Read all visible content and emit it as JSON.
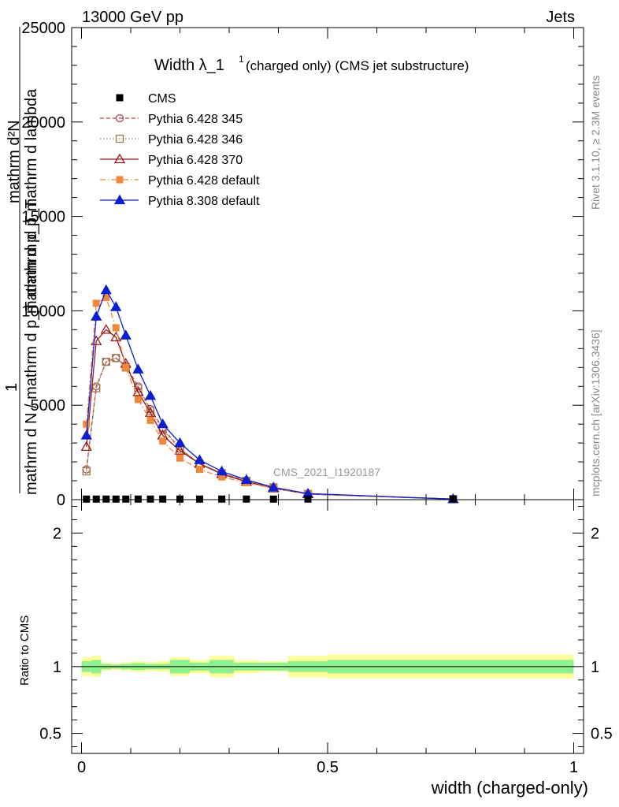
{
  "header": {
    "left": "13000 GeV pp",
    "right": "Jets"
  },
  "side_labels": {
    "rivet": "Rivet 3.1.10, ≥ 2.3M events",
    "mcplots": "mcplots.cern.ch [arXiv:1306.3436]"
  },
  "chart_data": [
    {
      "type": "line",
      "title_main": "Width λ_1",
      "title_sup": "1",
      "title_rest": "(charged only) (CMS jet substructure)",
      "ylabel_line1": "mathrm d²N",
      "ylabel_line2": "mathrm d p_T mathrm d lambda",
      "ylabel_line3": "1",
      "ylabel_line4": "mathrm d N / mathrm d p_T mathrm d p_T",
      "watermark": "CMS_2021_I1920187",
      "xlim": [
        -0.02,
        1.02
      ],
      "ylim": [
        0,
        25000
      ],
      "yticks": [
        0,
        5000,
        10000,
        15000,
        20000,
        25000
      ],
      "ytick_labels": [
        "0",
        "5000",
        "10000",
        "15000",
        "20000",
        "25000"
      ],
      "x": [
        0.01,
        0.03,
        0.05,
        0.07,
        0.09,
        0.115,
        0.14,
        0.165,
        0.2,
        0.24,
        0.285,
        0.335,
        0.39,
        0.46,
        0.755
      ],
      "series": [
        {
          "name": "CMS",
          "color": "#000000",
          "marker": "square-filled",
          "values": [
            30,
            30,
            30,
            30,
            30,
            30,
            30,
            30,
            30,
            30,
            30,
            30,
            30,
            30,
            30
          ]
        },
        {
          "name": "Pythia 6.428 345",
          "color": "#b2474e",
          "marker": "circle-open",
          "dash": "5,3",
          "values": [
            1600,
            6000,
            7300,
            7500,
            7100,
            6000,
            4800,
            3800,
            2700,
            1900,
            1400,
            1000,
            650,
            300,
            30
          ]
        },
        {
          "name": "Pythia 6.428 346",
          "color": "#a0784a",
          "marker": "square-open",
          "dash": "1.5,2.5",
          "values": [
            1500,
            5900,
            7300,
            7500,
            7000,
            5900,
            4700,
            3700,
            2700,
            1900,
            1400,
            1000,
            650,
            300,
            30
          ]
        },
        {
          "name": "Pythia 6.428 370",
          "color": "#9b1818",
          "marker": "triangle-open",
          "dash": "",
          "values": [
            2800,
            8400,
            9000,
            8600,
            7200,
            5700,
            4600,
            3400,
            2600,
            1900,
            1350,
            950,
            600,
            300,
            30
          ]
        },
        {
          "name": "Pythia 6.428 default",
          "color": "#f0883c",
          "marker": "square-filled",
          "dash": "7,3,1.5,3",
          "values": [
            4000,
            10400,
            10700,
            9100,
            7000,
            5300,
            4200,
            3100,
            2200,
            1600,
            1200,
            900,
            600,
            300,
            30
          ]
        },
        {
          "name": "Pythia 8.308 default",
          "color": "#0a1ed2",
          "marker": "triangle-filled",
          "dash": "",
          "values": [
            3400,
            9700,
            11100,
            10200,
            8700,
            6900,
            5500,
            4000,
            3000,
            2100,
            1500,
            1050,
            650,
            320,
            30
          ]
        }
      ]
    },
    {
      "type": "area",
      "ylabel": "Ratio to CMS",
      "xlabel": "width (charged-only)",
      "xlim": [
        -0.02,
        1.02
      ],
      "ylim": [
        0.35,
        2.25
      ],
      "xticks": [
        0,
        0.5,
        1
      ],
      "xtick_labels": [
        "0",
        "0.5",
        "1"
      ],
      "yticks": [
        0.5,
        1,
        2
      ],
      "ytick_labels": [
        "0.5",
        "1",
        "2"
      ],
      "reference": 1,
      "bin_edges": [
        0,
        0.02,
        0.04,
        0.06,
        0.08,
        0.1,
        0.13,
        0.15,
        0.18,
        0.22,
        0.26,
        0.31,
        0.36,
        0.42,
        0.5,
        1.0
      ],
      "band_inner": [
        [
          0.96,
          1.04
        ],
        [
          0.95,
          1.05
        ],
        [
          0.98,
          1.02
        ],
        [
          0.985,
          1.015
        ],
        [
          0.98,
          1.02
        ],
        [
          0.975,
          1.025
        ],
        [
          0.98,
          1.02
        ],
        [
          0.98,
          1.02
        ],
        [
          0.95,
          1.05
        ],
        [
          0.97,
          1.03
        ],
        [
          0.95,
          1.05
        ],
        [
          0.97,
          1.03
        ],
        [
          0.97,
          1.03
        ],
        [
          0.96,
          1.04
        ],
        [
          0.95,
          1.05
        ]
      ],
      "band_outer": [
        [
          0.93,
          1.07
        ],
        [
          0.92,
          1.08
        ],
        [
          0.97,
          1.03
        ],
        [
          0.975,
          1.025
        ],
        [
          0.97,
          1.03
        ],
        [
          0.96,
          1.04
        ],
        [
          0.965,
          1.035
        ],
        [
          0.96,
          1.04
        ],
        [
          0.93,
          1.07
        ],
        [
          0.95,
          1.05
        ],
        [
          0.92,
          1.08
        ],
        [
          0.95,
          1.05
        ],
        [
          0.96,
          1.04
        ],
        [
          0.92,
          1.08
        ],
        [
          0.91,
          1.09
        ]
      ]
    }
  ]
}
